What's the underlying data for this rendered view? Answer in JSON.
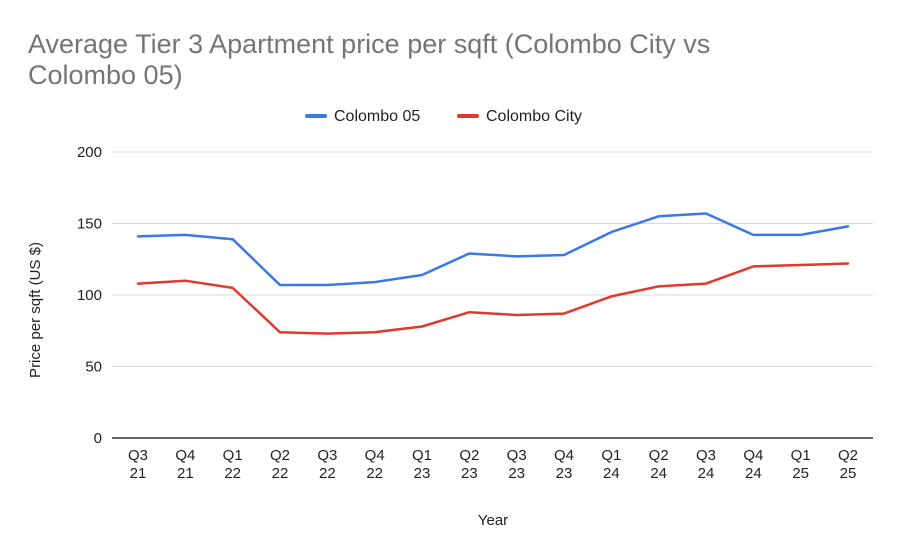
{
  "chart_data": {
    "type": "line",
    "title_lines": [
      "Average Tier 3 Apartment price per sqft (Colombo City vs",
      "Colombo 05)"
    ],
    "xlabel": "Year",
    "ylabel": "Price per sqft (US $)",
    "ylim": [
      0,
      200
    ],
    "yticks": [
      0,
      50,
      100,
      150,
      200
    ],
    "grid": true,
    "legend_position": "top-center",
    "categories": [
      [
        "Q3",
        "21"
      ],
      [
        "Q4",
        "21"
      ],
      [
        "Q1",
        "22"
      ],
      [
        "Q2",
        "22"
      ],
      [
        "Q3",
        "22"
      ],
      [
        "Q4",
        "22"
      ],
      [
        "Q1",
        "23"
      ],
      [
        "Q2",
        "23"
      ],
      [
        "Q3",
        "23"
      ],
      [
        "Q4",
        "23"
      ],
      [
        "Q1",
        "24"
      ],
      [
        "Q2",
        "24"
      ],
      [
        "Q3",
        "24"
      ],
      [
        "Q4",
        "24"
      ],
      [
        "Q1",
        "25"
      ],
      [
        "Q2",
        "25"
      ]
    ],
    "series": [
      {
        "name": "Colombo 05",
        "color": "#3b78e7",
        "values": [
          141,
          142,
          139,
          107,
          107,
          109,
          114,
          129,
          127,
          128,
          144,
          155,
          157,
          142,
          142,
          148
        ]
      },
      {
        "name": "Colombo City",
        "color": "#e03a2e",
        "values": [
          108,
          110,
          105,
          74,
          73,
          74,
          78,
          88,
          86,
          87,
          99,
          106,
          108,
          120,
          121,
          122
        ]
      }
    ]
  }
}
